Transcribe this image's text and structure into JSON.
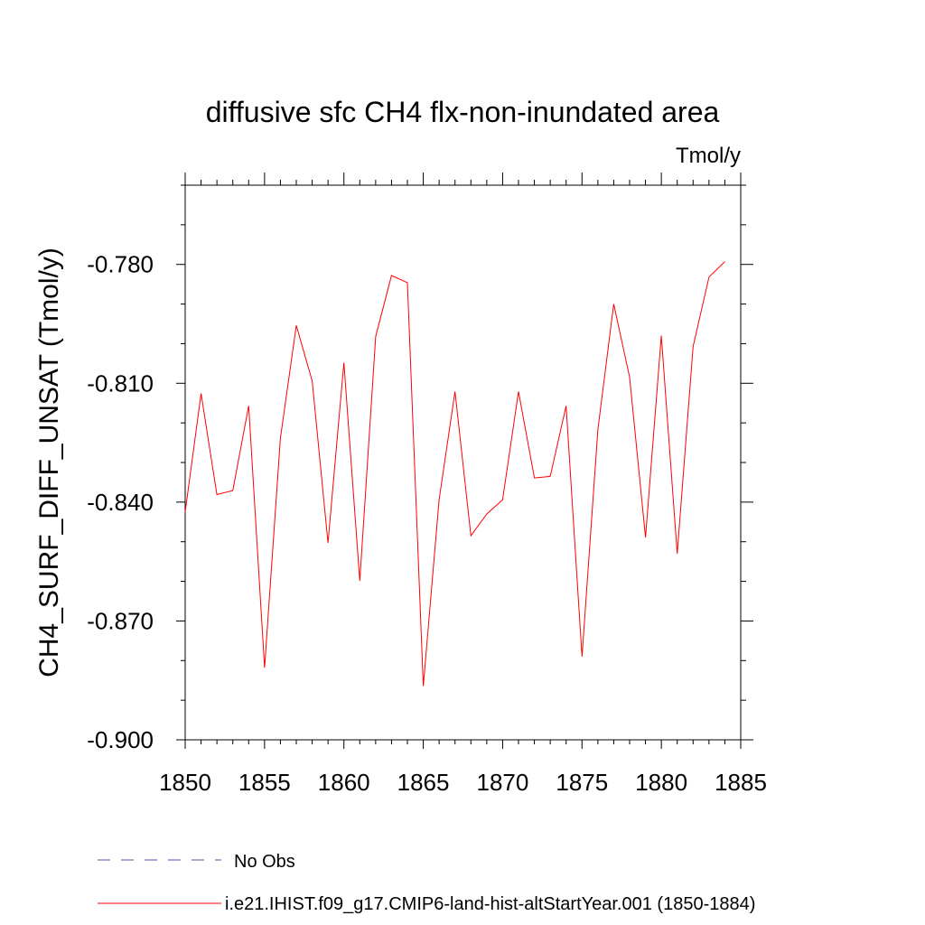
{
  "chart_data": {
    "type": "line",
    "title": "diffusive sfc CH4 flx-non-inundated area",
    "units_label": "Tmol/y",
    "ylabel": "CH4_SURF_DIFF_UNSAT  (Tmol/y)",
    "xlabel": "",
    "xlim": [
      1850,
      1885
    ],
    "ylim": [
      -0.9,
      -0.76
    ],
    "x_ticks": [
      1850,
      1855,
      1860,
      1865,
      1870,
      1875,
      1880,
      1885
    ],
    "x_tick_labels": [
      "1850",
      "1855",
      "1860",
      "1865",
      "1870",
      "1875",
      "1880",
      "1885"
    ],
    "y_ticks": [
      -0.9,
      -0.87,
      -0.84,
      -0.81,
      -0.78
    ],
    "y_tick_labels": [
      "-0.900",
      "-0.870",
      "-0.840",
      "-0.810",
      "-0.780"
    ],
    "grid": false,
    "legend_position": "bottom",
    "series": [
      {
        "name": "i.e21.IHIST.f09_g17.CMIP6-land-hist-altStartYear.001 (1850-1884)",
        "color": "#ff0000",
        "style": "solid",
        "x": [
          1850,
          1851,
          1852,
          1853,
          1854,
          1855,
          1856,
          1857,
          1858,
          1859,
          1860,
          1861,
          1862,
          1863,
          1864,
          1865,
          1866,
          1867,
          1868,
          1869,
          1870,
          1871,
          1872,
          1873,
          1874,
          1875,
          1876,
          1877,
          1878,
          1879,
          1880,
          1881,
          1882,
          1883,
          1884
        ],
        "y": [
          -0.8425,
          -0.8126,
          -0.8381,
          -0.8371,
          -0.8157,
          -0.8818,
          -0.8239,
          -0.7954,
          -0.8094,
          -0.8503,
          -0.8048,
          -0.8599,
          -0.7982,
          -0.7828,
          -0.7846,
          -0.8864,
          -0.8394,
          -0.8121,
          -0.8485,
          -0.843,
          -0.8394,
          -0.8121,
          -0.8339,
          -0.8335,
          -0.8157,
          -0.879,
          -0.8216,
          -0.79,
          -0.8085,
          -0.8489,
          -0.798,
          -0.853,
          -0.8007,
          -0.7832,
          -0.7793
        ]
      }
    ],
    "reference_series": {
      "name": "No Obs",
      "color": "#5050a0",
      "style": "dashed"
    }
  }
}
